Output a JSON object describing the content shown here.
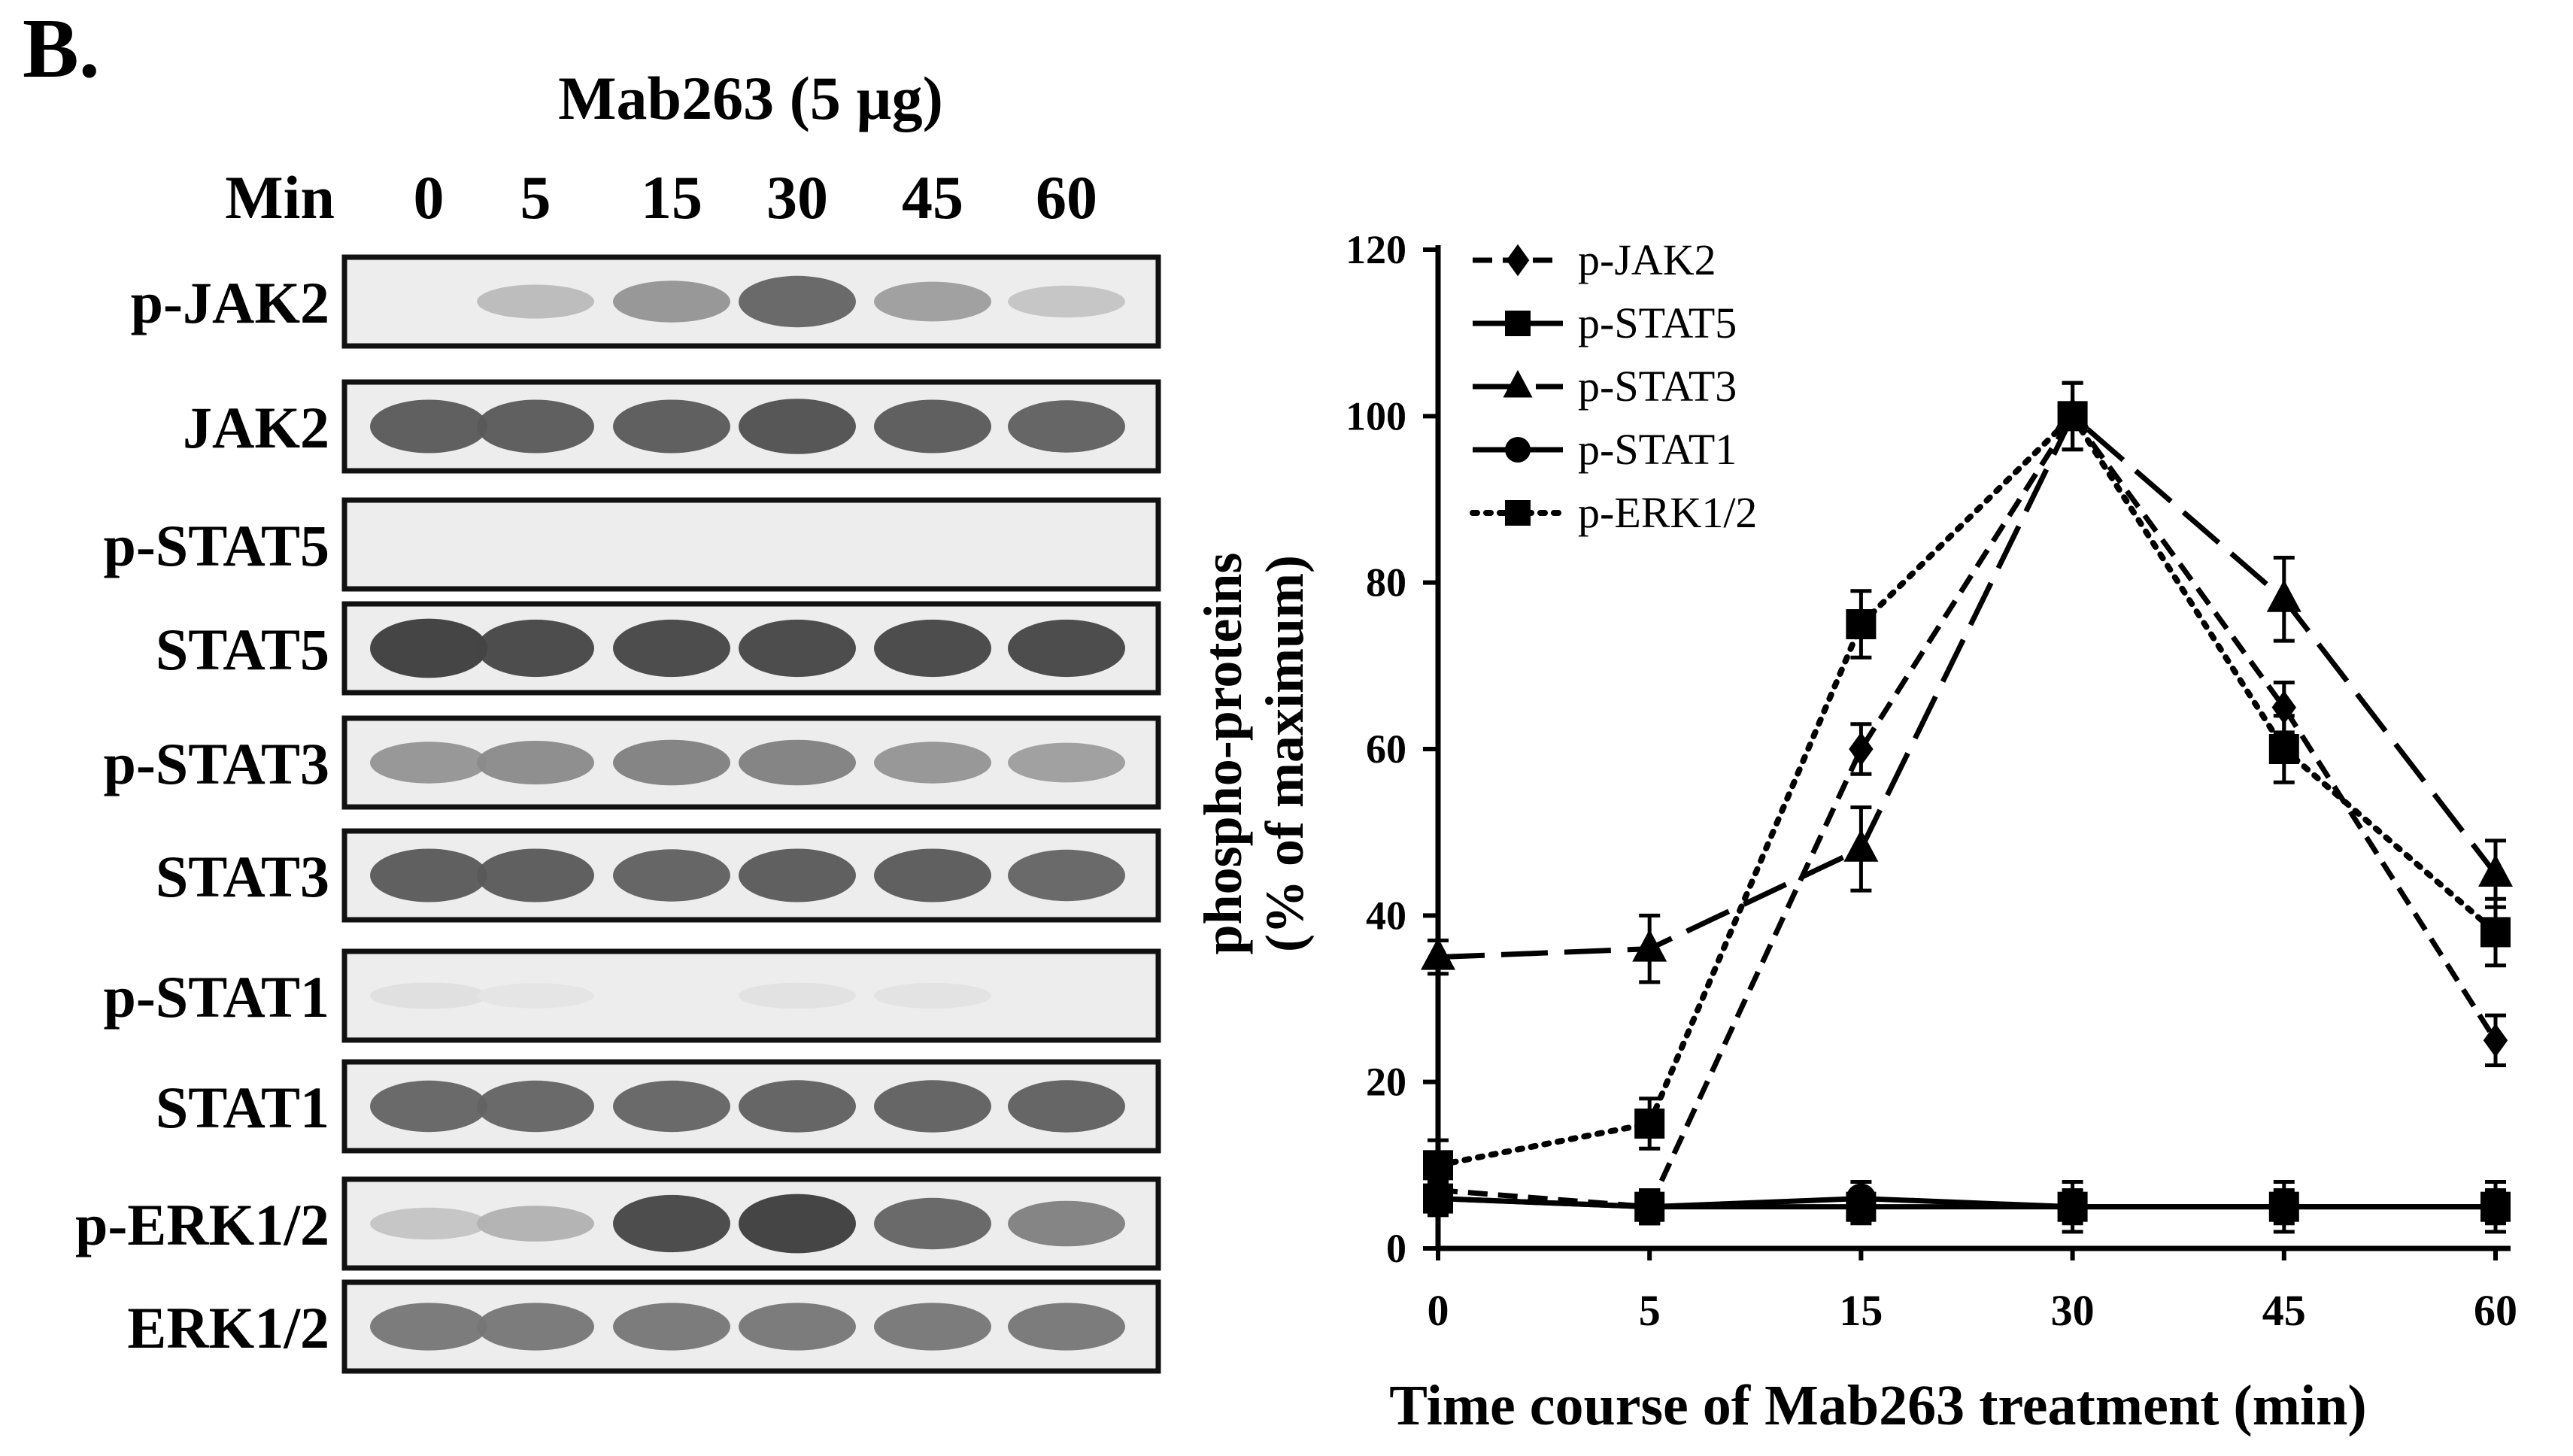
{
  "panel_label": "B.",
  "blot": {
    "treatment_label": "Mab263 (5 µg)",
    "time_label": "Min",
    "times": [
      "0",
      "5",
      "15",
      "30",
      "45",
      "60"
    ],
    "rows": [
      {
        "label": "p-JAK2",
        "intensity": [
          0.0,
          0.25,
          0.45,
          0.7,
          0.4,
          0.2
        ]
      },
      {
        "label": "JAK2",
        "intensity": [
          0.75,
          0.75,
          0.75,
          0.8,
          0.75,
          0.72
        ]
      },
      {
        "label": "p-STAT5",
        "intensity": [
          0.0,
          0.0,
          0.0,
          0.0,
          0.0,
          0.0
        ]
      },
      {
        "label": "STAT5",
        "intensity": [
          0.9,
          0.85,
          0.85,
          0.85,
          0.85,
          0.85
        ]
      },
      {
        "label": "p-STAT3",
        "intensity": [
          0.45,
          0.5,
          0.55,
          0.55,
          0.45,
          0.4
        ]
      },
      {
        "label": "STAT3",
        "intensity": [
          0.75,
          0.75,
          0.72,
          0.75,
          0.75,
          0.7
        ]
      },
      {
        "label": "p-STAT1",
        "intensity": [
          0.06,
          0.03,
          0.0,
          0.05,
          0.04,
          0.0
        ]
      },
      {
        "label": "STAT1",
        "intensity": [
          0.7,
          0.7,
          0.7,
          0.72,
          0.72,
          0.72
        ]
      },
      {
        "label": "p-ERK1/2",
        "intensity": [
          0.2,
          0.3,
          0.85,
          0.9,
          0.7,
          0.55
        ]
      },
      {
        "label": "ERK1/2",
        "intensity": [
          0.6,
          0.6,
          0.6,
          0.6,
          0.6,
          0.6
        ]
      }
    ]
  },
  "chart_data": {
    "type": "line",
    "title": "",
    "xlabel": "Time course of Mab263 treatment (min)",
    "ylabel_line1": "phospho-proteins",
    "ylabel_line2": "(% of maximum)",
    "categories": [
      "0",
      "5",
      "15",
      "30",
      "45",
      "60"
    ],
    "ylim": [
      0,
      120
    ],
    "yticks": [
      0,
      20,
      40,
      60,
      80,
      100,
      120
    ],
    "grid": false,
    "legend_placement": "top-left",
    "series": [
      {
        "name": "p-JAK2",
        "marker": "diamond",
        "dash": "medium",
        "values": [
          7,
          5,
          60,
          100,
          65,
          25
        ],
        "errors": [
          2,
          2,
          3,
          4,
          3,
          3
        ]
      },
      {
        "name": "p-STAT5",
        "marker": "square",
        "dash": "solid",
        "values": [
          6,
          5,
          5,
          5,
          5,
          5
        ],
        "errors": [
          2,
          2,
          2,
          2,
          2,
          2
        ]
      },
      {
        "name": "p-STAT3",
        "marker": "triangle",
        "dash": "long",
        "values": [
          35,
          36,
          48,
          100,
          78,
          45
        ],
        "errors": [
          2,
          4,
          5,
          4,
          5,
          4
        ]
      },
      {
        "name": "p-STAT1",
        "marker": "circle",
        "dash": "solid",
        "values": [
          6,
          5,
          6,
          5,
          5,
          5
        ],
        "errors": [
          2,
          2,
          2,
          3,
          3,
          3
        ]
      },
      {
        "name": "p-ERK1/2",
        "marker": "square",
        "dash": "dotted",
        "values": [
          10,
          15,
          75,
          100,
          60,
          38
        ],
        "errors": [
          3,
          3,
          4,
          4,
          4,
          4
        ]
      }
    ]
  }
}
